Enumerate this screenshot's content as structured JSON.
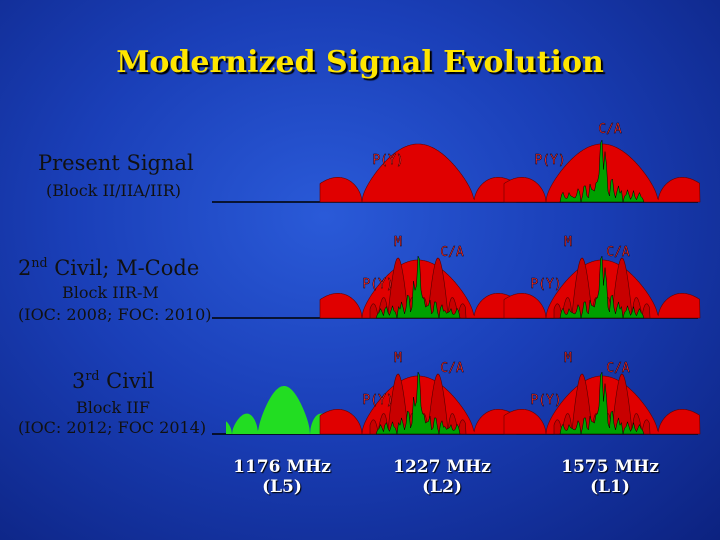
{
  "title": "Modernized Signal Evolution",
  "rows": [
    {
      "label_main": "Present Signal",
      "label_sub": "(Block II/IIA/IIR)"
    },
    {
      "label_main_prefix": "2",
      "label_main_sup": "nd",
      "label_main_suffix": " Civil; M-Code",
      "label_sub": "Block IIR-M",
      "label_sub2": "(IOC: 2008; FOC: 2010)"
    },
    {
      "label_main_prefix": "3",
      "label_main_sup": "rd",
      "label_main_suffix": " Civil",
      "label_sub": "Block IIF",
      "label_sub2": "(IOC: 2012; FOC 2014)"
    }
  ],
  "signal_labels": {
    "ca": "C/A",
    "py": "P(Y)",
    "m": "M"
  },
  "frequencies": [
    {
      "freq": "1176 MHz",
      "band": "(L5)"
    },
    {
      "freq": "1227 MHz",
      "band": "(L2)"
    },
    {
      "freq": "1575 MHz",
      "band": "(L1)"
    }
  ],
  "colors": {
    "title": "#ffe600",
    "py_signal": "#e00000",
    "m_code": "#c80000",
    "ca_signal": "#00a000",
    "l5_signal": "#22dd22",
    "background": "#1a3fb8"
  }
}
